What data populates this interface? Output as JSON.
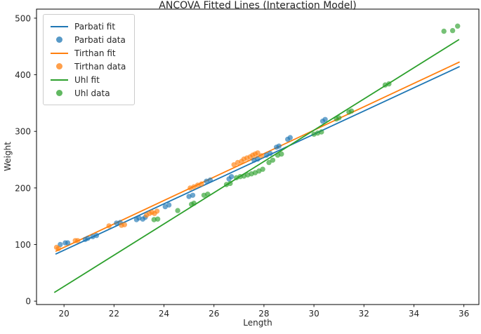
{
  "title": "ANCOVA Fitted Lines (Interaction Model)",
  "chart_data": {
    "type": "scatter",
    "title": "ANCOVA Fitted Lines (Interaction Model)",
    "xlabel": "Length",
    "ylabel": "Weight",
    "xlim": [
      18.9,
      36.6
    ],
    "ylim": [
      -6,
      516
    ],
    "xticks": [
      20,
      22,
      24,
      26,
      28,
      30,
      32,
      34,
      36
    ],
    "yticks": [
      0,
      100,
      200,
      300,
      400,
      500
    ],
    "grid": false,
    "legend_position": "upper left",
    "marker_alpha": 0.65,
    "series": [
      {
        "id": "parbati-fit",
        "name": "Parbati fit",
        "type": "line",
        "color": "#1f77b4",
        "x": [
          19.66,
          35.83
        ],
        "y": [
          83,
          414.5
        ],
        "equation_approx": "weight = 20.5*length - 320"
      },
      {
        "id": "parbati-data",
        "name": "Parbati data",
        "type": "scatter",
        "color": "#1f77b4",
        "points": [
          [
            19.85,
            100
          ],
          [
            20.05,
            103
          ],
          [
            20.15,
            103
          ],
          [
            20.85,
            109
          ],
          [
            20.95,
            111
          ],
          [
            21.15,
            114
          ],
          [
            21.3,
            116
          ],
          [
            22.1,
            138
          ],
          [
            22.25,
            139
          ],
          [
            22.9,
            144
          ],
          [
            23.0,
            147
          ],
          [
            23.15,
            145
          ],
          [
            23.25,
            148
          ],
          [
            24.05,
            167
          ],
          [
            24.2,
            170
          ],
          [
            25.0,
            185
          ],
          [
            25.15,
            187
          ],
          [
            25.7,
            212
          ],
          [
            25.85,
            214
          ],
          [
            26.6,
            216
          ],
          [
            26.7,
            220
          ],
          [
            27.6,
            249
          ],
          [
            27.75,
            251
          ],
          [
            28.1,
            258
          ],
          [
            28.25,
            261
          ],
          [
            28.5,
            272
          ],
          [
            28.6,
            274
          ],
          [
            28.95,
            286
          ],
          [
            29.05,
            289
          ],
          [
            30.35,
            318
          ],
          [
            30.45,
            321
          ]
        ]
      },
      {
        "id": "tirthan-fit",
        "name": "Tirthan fit",
        "type": "line",
        "color": "#ff7f0e",
        "x": [
          19.66,
          35.83
        ],
        "y": [
          88,
          422.7
        ],
        "equation_approx": "weight = 20.7*length - 319"
      },
      {
        "id": "tirthan-data",
        "name": "Tirthan data",
        "type": "scatter",
        "color": "#ff7f0e",
        "points": [
          [
            19.7,
            95
          ],
          [
            19.78,
            93
          ],
          [
            20.45,
            107
          ],
          [
            20.55,
            107
          ],
          [
            21.8,
            133
          ],
          [
            22.3,
            134
          ],
          [
            22.42,
            135
          ],
          [
            23.3,
            152
          ],
          [
            23.42,
            155
          ],
          [
            23.52,
            157
          ],
          [
            23.62,
            155
          ],
          [
            23.72,
            159
          ],
          [
            25.05,
            200
          ],
          [
            25.2,
            202
          ],
          [
            25.35,
            205
          ],
          [
            25.5,
            207
          ],
          [
            26.8,
            241
          ],
          [
            26.95,
            245
          ],
          [
            27.1,
            247
          ],
          [
            27.2,
            251
          ],
          [
            27.32,
            253
          ],
          [
            27.45,
            255
          ],
          [
            27.55,
            258
          ],
          [
            27.65,
            260
          ],
          [
            27.75,
            262
          ],
          [
            27.9,
            257
          ]
        ]
      },
      {
        "id": "uhl-fit",
        "name": "Uhl fit",
        "type": "line",
        "color": "#2ca02c",
        "x": [
          19.61,
          35.81
        ],
        "y": [
          15.2,
          462.4
        ],
        "equation_approx": "weight = 27.6*length - 526"
      },
      {
        "id": "uhl-data",
        "name": "Uhl data",
        "type": "scatter",
        "color": "#2ca02c",
        "points": [
          [
            23.6,
            144
          ],
          [
            23.75,
            145
          ],
          [
            24.55,
            160
          ],
          [
            25.1,
            171
          ],
          [
            25.2,
            173
          ],
          [
            25.6,
            187
          ],
          [
            25.75,
            189
          ],
          [
            26.5,
            206
          ],
          [
            26.65,
            208
          ],
          [
            26.9,
            218
          ],
          [
            27.05,
            220
          ],
          [
            27.2,
            221
          ],
          [
            27.35,
            223
          ],
          [
            27.5,
            225
          ],
          [
            27.65,
            227
          ],
          [
            27.8,
            230
          ],
          [
            27.95,
            233
          ],
          [
            28.2,
            245
          ],
          [
            28.35,
            249
          ],
          [
            28.55,
            258
          ],
          [
            28.7,
            260
          ],
          [
            30.0,
            295
          ],
          [
            30.15,
            297
          ],
          [
            30.3,
            299
          ],
          [
            30.9,
            322
          ],
          [
            31.0,
            324
          ],
          [
            31.4,
            334
          ],
          [
            31.5,
            336
          ],
          [
            32.85,
            382
          ],
          [
            33.0,
            384
          ],
          [
            35.2,
            477
          ],
          [
            35.55,
            478
          ],
          [
            35.75,
            486
          ]
        ]
      }
    ]
  },
  "legend": {
    "entries": [
      {
        "label": "Parbati fit",
        "marker": "line",
        "color": "#1f77b4"
      },
      {
        "label": "Parbati data",
        "marker": "dot",
        "color": "#1f77b4"
      },
      {
        "label": "Tirthan fit",
        "marker": "line",
        "color": "#ff7f0e"
      },
      {
        "label": "Tirthan data",
        "marker": "dot",
        "color": "#ff7f0e"
      },
      {
        "label": "Uhl fit",
        "marker": "line",
        "color": "#2ca02c"
      },
      {
        "label": "Uhl data",
        "marker": "dot",
        "color": "#2ca02c"
      }
    ]
  },
  "colors": {
    "parbati": "#1f77b4",
    "tirthan": "#ff7f0e",
    "uhl": "#2ca02c",
    "axis": "#000000",
    "text": "#262626"
  }
}
